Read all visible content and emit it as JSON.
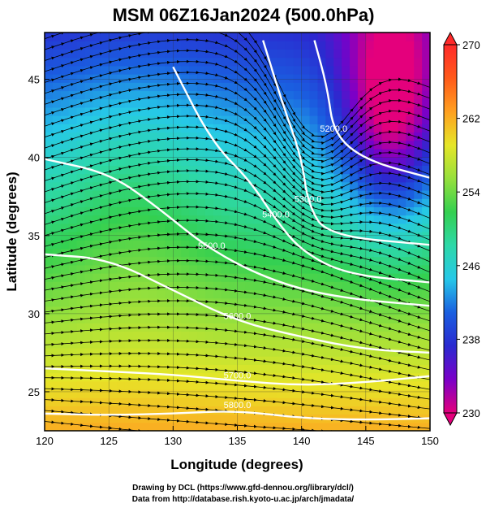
{
  "chart_data": {
    "type": "heatmap",
    "title": "MSM 06Z16Jan2024 (500.0hPa)",
    "xlabel": "Longitude (degrees)",
    "ylabel": "Latitude  (degrees)",
    "xlim": [
      120,
      150
    ],
    "ylim": [
      22.5,
      48
    ],
    "x_ticks": [
      "120",
      "125",
      "130",
      "135",
      "140",
      "145",
      "150"
    ],
    "y_ticks": [
      "25",
      "30",
      "35",
      "40",
      "45"
    ],
    "colorbar": {
      "range": [
        230,
        270
      ],
      "tick_labels": [
        "270",
        "262",
        "254",
        "246",
        "238",
        "230"
      ]
    },
    "contours": [
      {
        "value": "5200.0",
        "points": [
          [
            141,
            47.5
          ],
          [
            142,
            44.5
          ],
          [
            142.5,
            41.5
          ],
          [
            145,
            39.8
          ],
          [
            150,
            38.7
          ]
        ]
      },
      {
        "value": "5300.0",
        "points": [
          [
            137,
            47.5
          ],
          [
            138.5,
            43.5
          ],
          [
            140,
            40
          ],
          [
            140.5,
            37
          ],
          [
            142,
            35
          ],
          [
            150,
            34.4
          ]
        ]
      },
      {
        "value": "5400.0",
        "points": [
          [
            130,
            45.8
          ],
          [
            133,
            41
          ],
          [
            136,
            38.5
          ],
          [
            138,
            36
          ],
          [
            140,
            34
          ],
          [
            143.5,
            32.5
          ],
          [
            150,
            32
          ]
        ]
      },
      {
        "value": "5500.0",
        "points": [
          [
            120,
            39.9
          ],
          [
            125,
            39
          ],
          [
            128.5,
            37
          ],
          [
            133,
            34
          ],
          [
            138,
            32
          ],
          [
            143,
            31
          ],
          [
            150,
            30.5
          ]
        ]
      },
      {
        "value": "5600.0",
        "points": [
          [
            120,
            33.8
          ],
          [
            125,
            33.5
          ],
          [
            130,
            31.5
          ],
          [
            135,
            29.5
          ],
          [
            140,
            28.5
          ],
          [
            145,
            27.7
          ],
          [
            150,
            27.5
          ]
        ]
      },
      {
        "value": "5700.0",
        "points": [
          [
            120,
            26.5
          ],
          [
            125,
            26.3
          ],
          [
            130,
            26.1
          ],
          [
            135,
            25.7
          ],
          [
            140,
            25.4
          ],
          [
            145,
            25.6
          ],
          [
            150,
            26
          ]
        ]
      },
      {
        "value": "5800.0",
        "points": [
          [
            120,
            23.6
          ],
          [
            125,
            23.5
          ],
          [
            130,
            23.6
          ],
          [
            135,
            23.8
          ],
          [
            140,
            23.3
          ],
          [
            145,
            23.2
          ],
          [
            150,
            23.3
          ]
        ]
      }
    ],
    "contour_label_values": [
      "5200.0",
      "5300.0",
      "5400.0",
      "5500.0",
      "5600.0",
      "5700.0",
      "5800.0"
    ],
    "grid": true
  },
  "credits": {
    "line1": "Drawing by DCL (https://www.gfd-dennou.org/library/dcl/)",
    "line2": "Data from http://database.rish.kyoto-u.ac.jp/arch/jmadata/"
  },
  "colors": {
    "stops": [
      "#e4007c",
      "#7a00c8",
      "#2a2ad0",
      "#1a5fe0",
      "#26c8e8",
      "#2dd8a8",
      "#34d050",
      "#96e03c",
      "#e6e628",
      "#ffa020",
      "#ff5a1a",
      "#ff2a2a"
    ],
    "contour": "#ffffff",
    "streamline": "#000000"
  }
}
